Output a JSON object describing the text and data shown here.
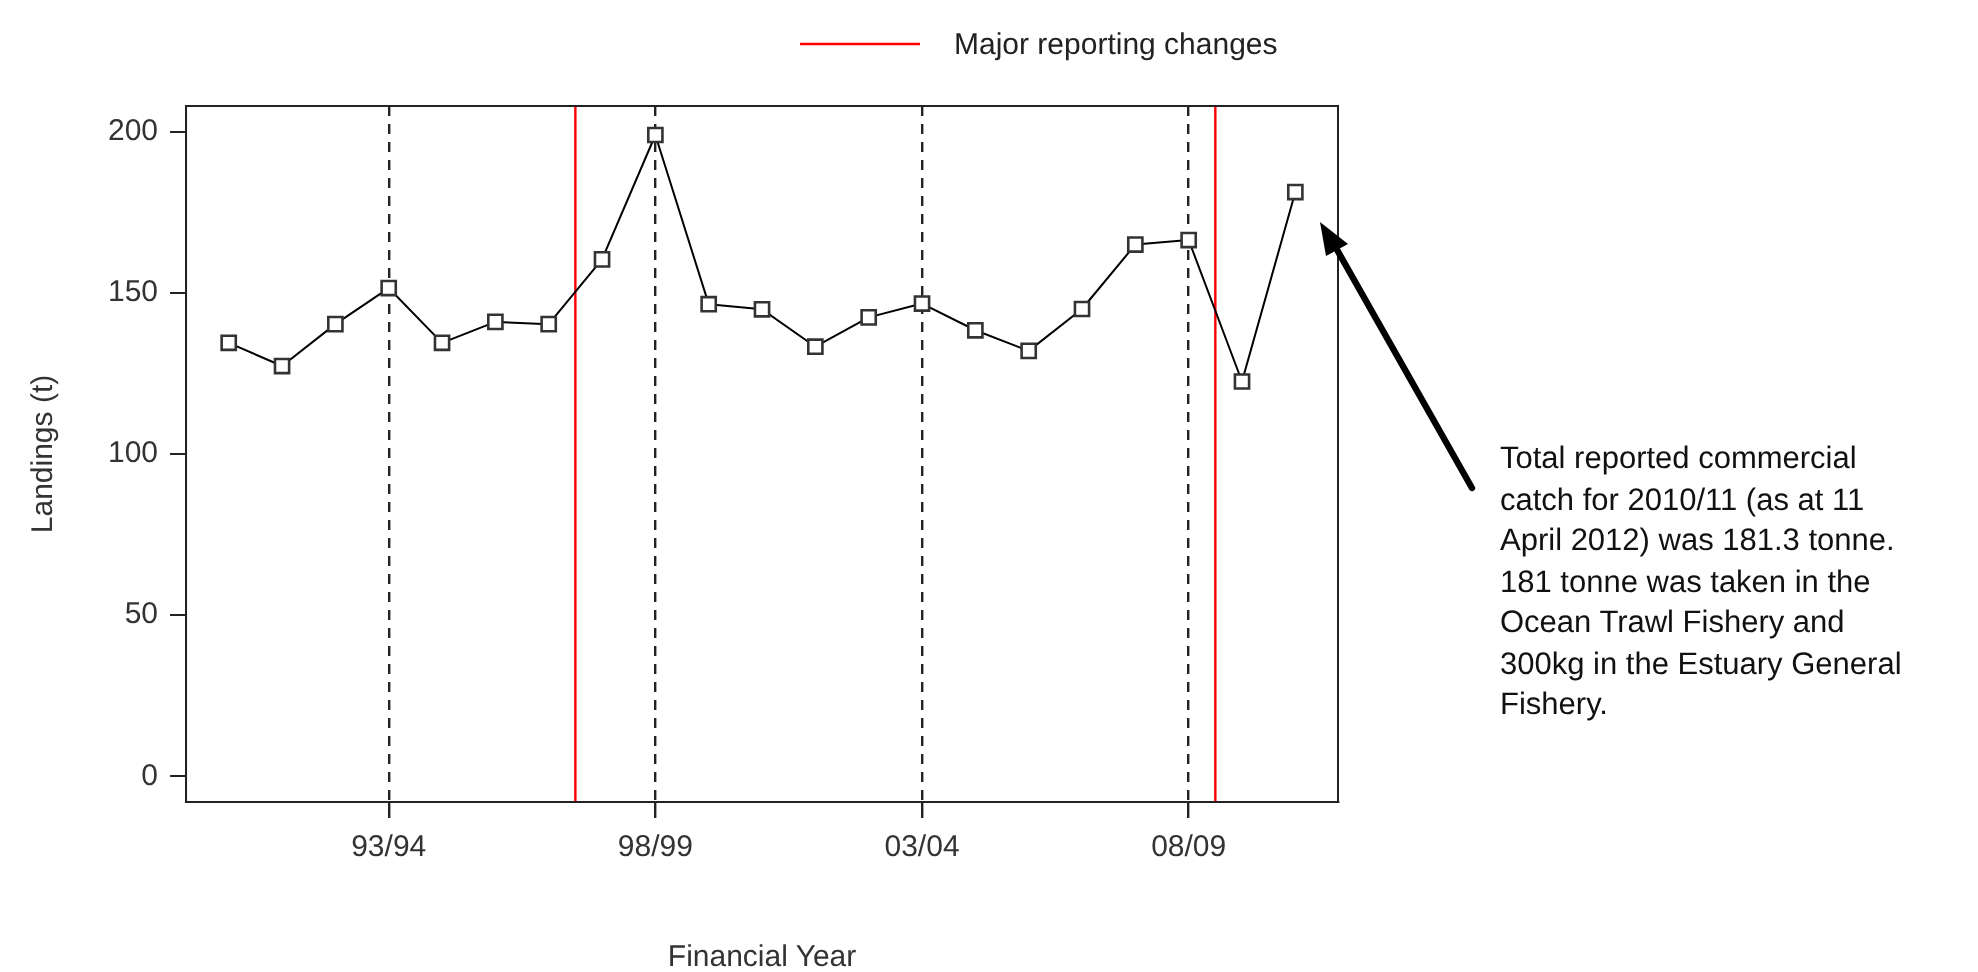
{
  "chart_data": {
    "type": "line",
    "xlabel": "Financial Year",
    "ylabel": "Landings (t)",
    "categories": [
      null,
      null,
      null,
      "93/94",
      null,
      null,
      null,
      null,
      "98/99",
      null,
      null,
      null,
      null,
      "03/04",
      null,
      null,
      null,
      null,
      "08/09",
      null,
      null
    ],
    "series": [
      {
        "color": "#000000",
        "values": [
          134.5,
          127.3,
          140.3,
          151.5,
          134.5,
          141,
          140.3,
          160.4,
          199,
          146.5,
          144.9,
          133.3,
          142.4,
          146.7,
          138.4,
          132,
          145,
          165,
          166.4,
          122.5,
          181.3
        ]
      }
    ],
    "ylim": [
      -8,
      208
    ],
    "yticks": [
      0,
      50,
      100,
      150,
      200
    ],
    "annotations": [
      "Major reporting changes",
      "Total reported commercial catch for 2010/11 (as at 11 April 2012) was 181.3 tonne. 181 tonne was taken in the Ocean Trawl Fishery and 300kg in the Estuary General Fishery."
    ],
    "grid": "x",
    "marker": "square",
    "line_style": "solid"
  }
}
